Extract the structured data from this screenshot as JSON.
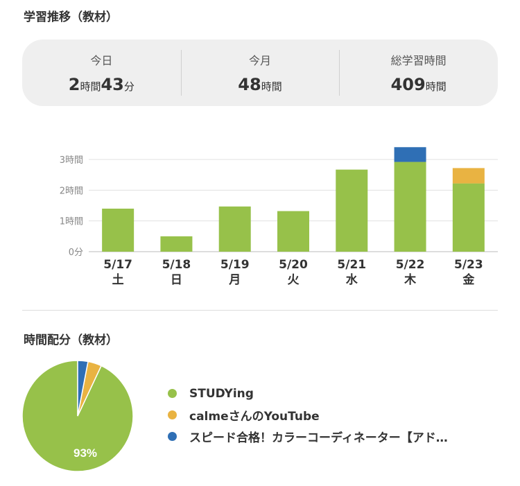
{
  "section1_title": "学習推移（教材）",
  "summary": {
    "today": {
      "label": "今日",
      "h": "2",
      "h_unit": "時間",
      "m": "43",
      "m_unit": "分"
    },
    "month": {
      "label": "今月",
      "h": "48",
      "h_unit": "時間"
    },
    "total": {
      "label": "総学習時間",
      "h": "409",
      "h_unit": "時間"
    }
  },
  "chart_data": {
    "type": "bar",
    "stacked": true,
    "categories": [
      "5/17",
      "5/18",
      "5/19",
      "5/20",
      "5/21",
      "5/22",
      "5/23"
    ],
    "weekdays": [
      "土",
      "日",
      "月",
      "火",
      "水",
      "木",
      "金"
    ],
    "y_ticks": [
      {
        "value": 0,
        "label": "0分"
      },
      {
        "value": 1,
        "label": "1時間"
      },
      {
        "value": 2,
        "label": "2時間"
      },
      {
        "value": 3,
        "label": "3時間"
      }
    ],
    "ylim": [
      0,
      3
    ],
    "grid": true,
    "series": [
      {
        "name": "STUDYing",
        "color": "#97c14a",
        "values": [
          1.4,
          0.5,
          1.47,
          1.32,
          2.67,
          2.92,
          2.22
        ]
      },
      {
        "name": "calmeさんのYouTube",
        "color": "#e9b342",
        "values": [
          0,
          0,
          0,
          0,
          0,
          0,
          0.5
        ]
      },
      {
        "name": "スピード合格！カラーコーディネーター【アド…",
        "color": "#2f6fb5",
        "values": [
          0,
          0,
          0,
          0,
          0,
          0.48,
          0
        ]
      }
    ]
  },
  "section2_title": "時間配分（教材）",
  "pie_data": {
    "type": "pie",
    "slices": [
      {
        "name": "STUDYing",
        "value": 93,
        "color": "#97c14a",
        "label": "93%"
      },
      {
        "name": "calmeさんのYouTube",
        "value": 4,
        "color": "#e9b342"
      },
      {
        "name": "スピード合格！カラーコーディネーター【アド…",
        "value": 3,
        "color": "#2f6fb5"
      }
    ]
  },
  "legend": [
    {
      "label": "STUDYing",
      "color": "#97c14a"
    },
    {
      "label": "calmeさんのYouTube",
      "color": "#e9b342"
    },
    {
      "label": "スピード合格！カラーコーディネーター【アド…",
      "color": "#2f6fb5"
    }
  ]
}
